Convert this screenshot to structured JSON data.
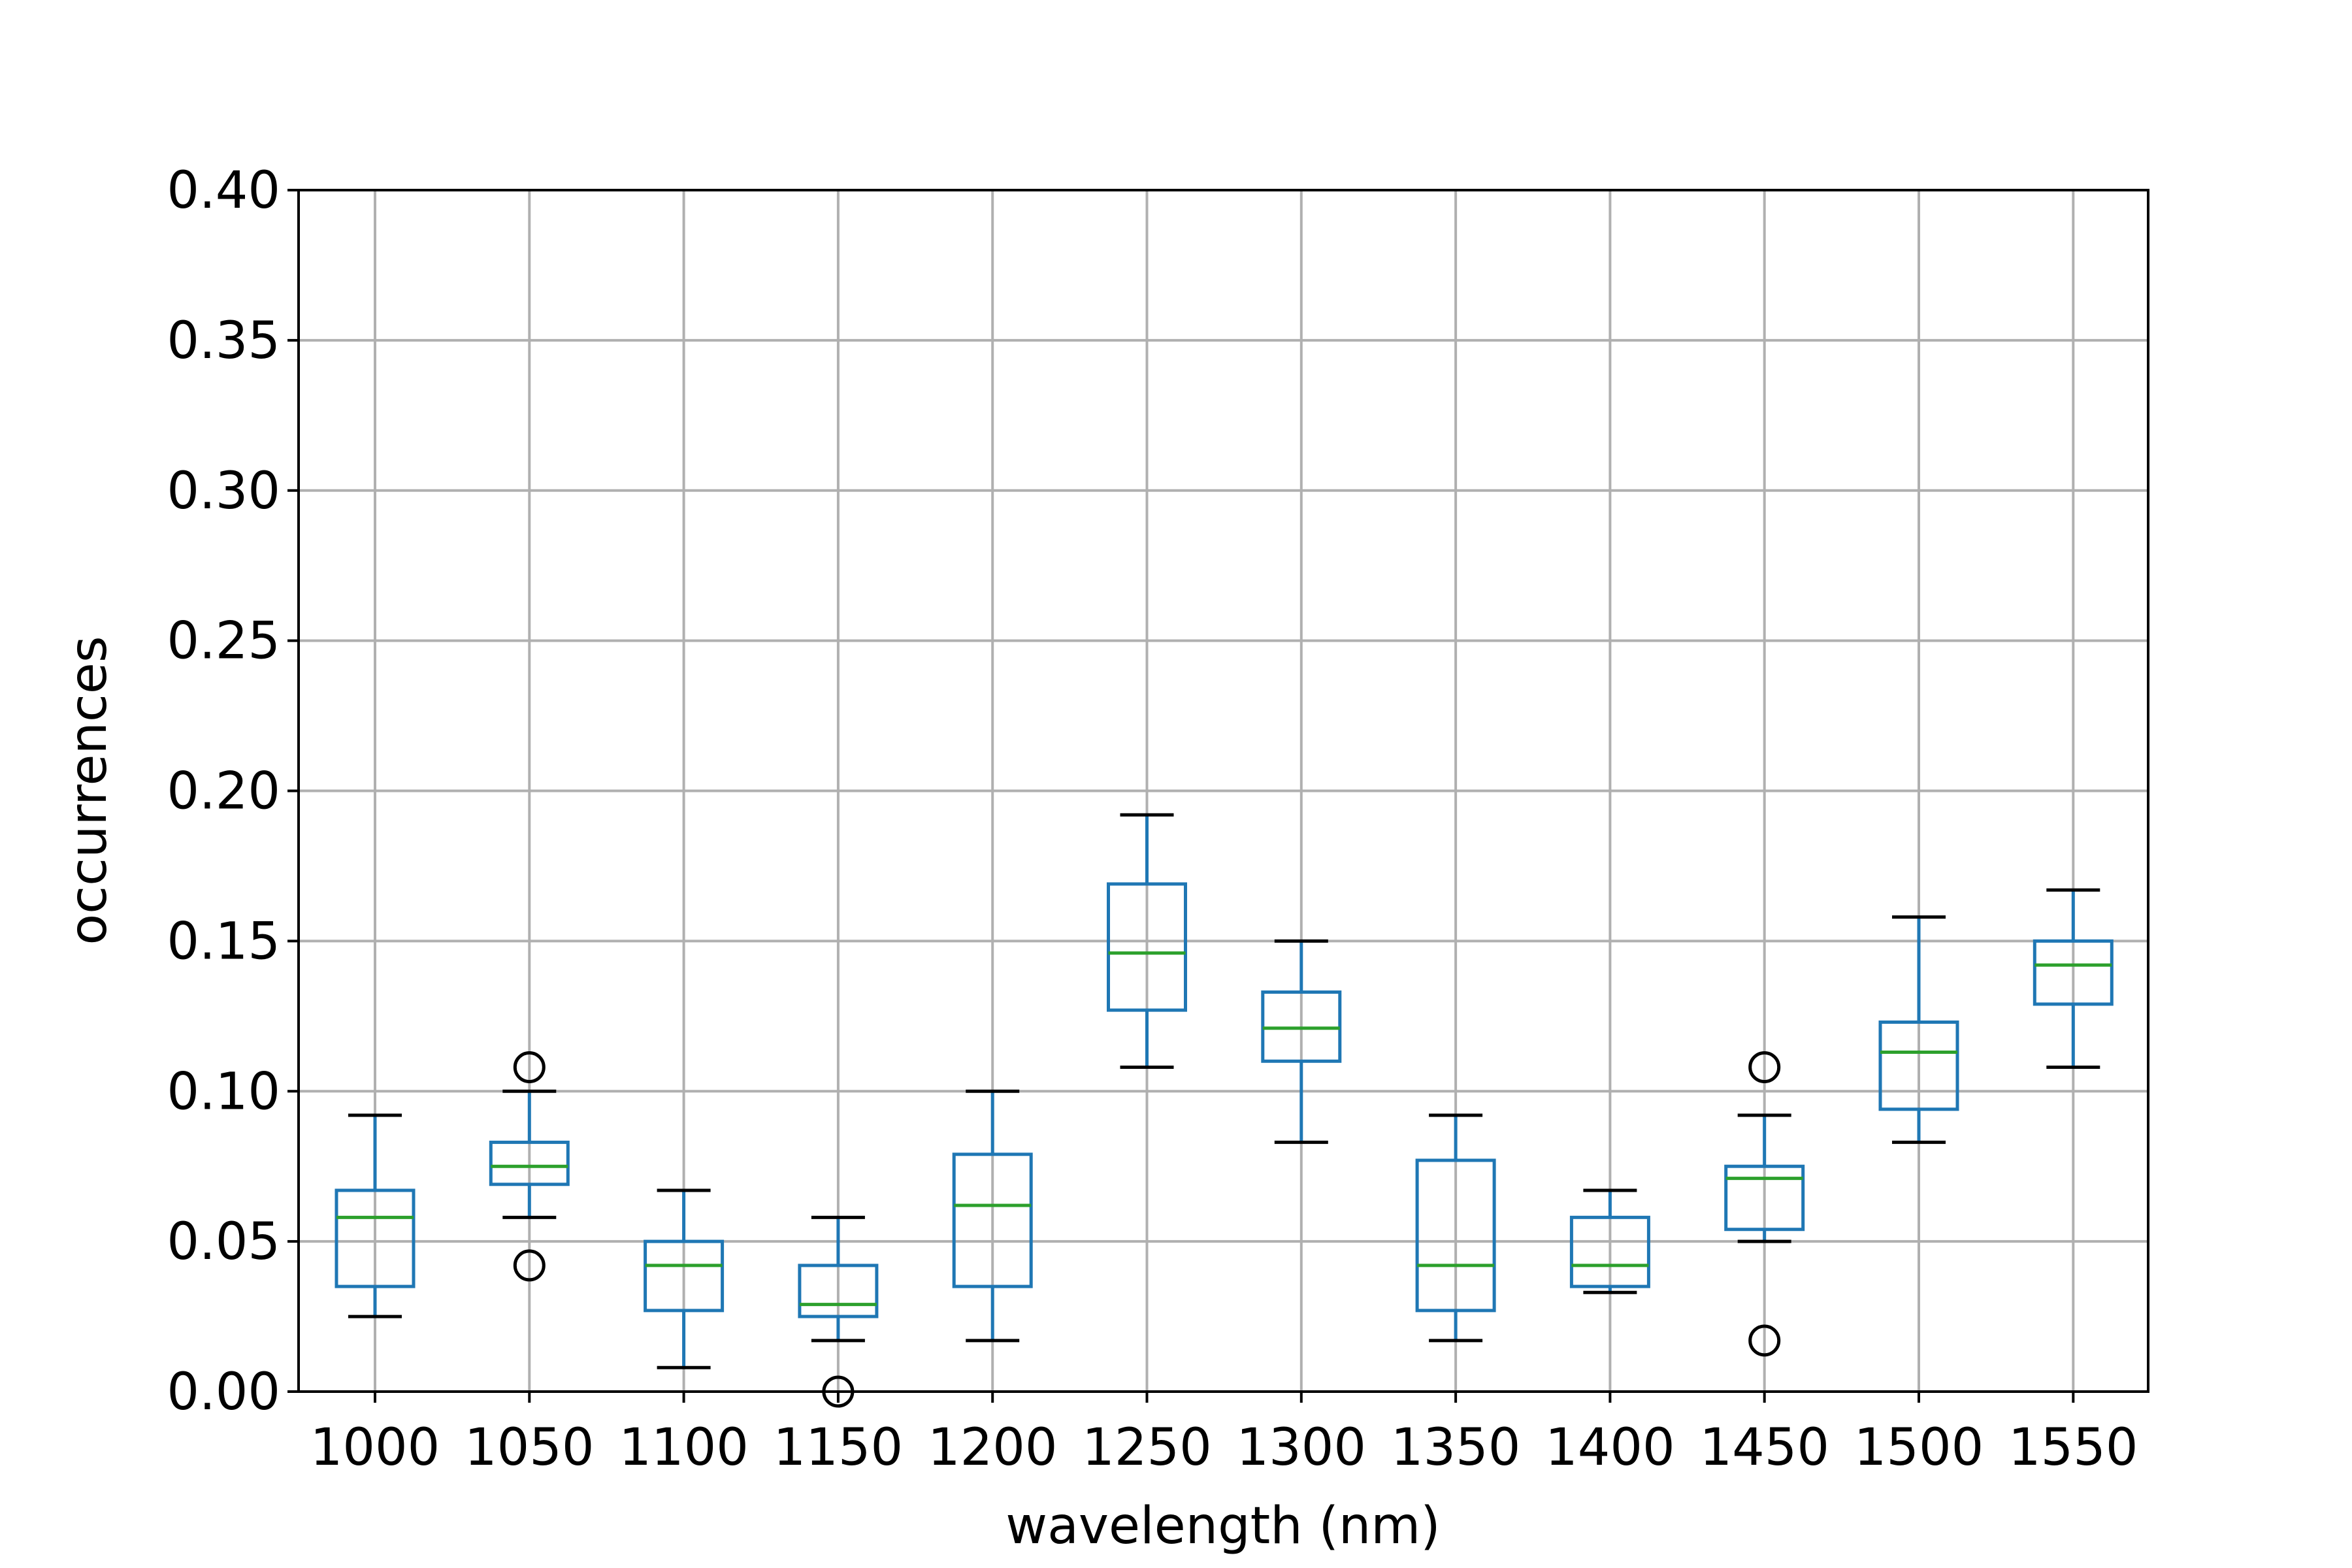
{
  "chart_data": {
    "type": "box",
    "title": "",
    "xlabel": "wavelength (nm)",
    "ylabel": "occurrences",
    "ylim": [
      0,
      0.4
    ],
    "yticks": [
      "0.00",
      "0.05",
      "0.10",
      "0.15",
      "0.20",
      "0.25",
      "0.30",
      "0.35",
      "0.40"
    ],
    "categories": [
      "1000",
      "1050",
      "1100",
      "1150",
      "1200",
      "1250",
      "1300",
      "1350",
      "1400",
      "1450",
      "1500",
      "1550"
    ],
    "grid": true,
    "colors": {
      "box": "#1f77b4",
      "median": "#2ca02c",
      "whisker_cap": "#000000",
      "grid": "#b0b0b0",
      "outlier": "#000000"
    },
    "boxes": [
      {
        "category": "1000",
        "whisker_low": 0.025,
        "q1": 0.035,
        "median": 0.058,
        "q3": 0.067,
        "whisker_high": 0.092,
        "outliers": []
      },
      {
        "category": "1050",
        "whisker_low": 0.058,
        "q1": 0.069,
        "median": 0.075,
        "q3": 0.083,
        "whisker_high": 0.1,
        "outliers": [
          0.108,
          0.042
        ]
      },
      {
        "category": "1100",
        "whisker_low": 0.008,
        "q1": 0.027,
        "median": 0.042,
        "q3": 0.05,
        "whisker_high": 0.067,
        "outliers": []
      },
      {
        "category": "1150",
        "whisker_low": 0.017,
        "q1": 0.025,
        "median": 0.029,
        "q3": 0.042,
        "whisker_high": 0.058,
        "outliers": [
          0.0
        ]
      },
      {
        "category": "1200",
        "whisker_low": 0.017,
        "q1": 0.035,
        "median": 0.062,
        "q3": 0.079,
        "whisker_high": 0.1,
        "outliers": []
      },
      {
        "category": "1250",
        "whisker_low": 0.108,
        "q1": 0.127,
        "median": 0.146,
        "q3": 0.169,
        "whisker_high": 0.192,
        "outliers": []
      },
      {
        "category": "1300",
        "whisker_low": 0.083,
        "q1": 0.11,
        "median": 0.121,
        "q3": 0.133,
        "whisker_high": 0.15,
        "outliers": []
      },
      {
        "category": "1350",
        "whisker_low": 0.017,
        "q1": 0.027,
        "median": 0.042,
        "q3": 0.077,
        "whisker_high": 0.092,
        "outliers": []
      },
      {
        "category": "1400",
        "whisker_low": 0.033,
        "q1": 0.035,
        "median": 0.042,
        "q3": 0.058,
        "whisker_high": 0.067,
        "outliers": []
      },
      {
        "category": "1450",
        "whisker_low": 0.05,
        "q1": 0.054,
        "median": 0.071,
        "q3": 0.075,
        "whisker_high": 0.092,
        "outliers": [
          0.108,
          0.017
        ]
      },
      {
        "category": "1500",
        "whisker_low": 0.083,
        "q1": 0.094,
        "median": 0.113,
        "q3": 0.123,
        "whisker_high": 0.158,
        "outliers": []
      },
      {
        "category": "1550",
        "whisker_low": 0.108,
        "q1": 0.129,
        "median": 0.142,
        "q3": 0.15,
        "whisker_high": 0.167,
        "outliers": []
      }
    ]
  }
}
